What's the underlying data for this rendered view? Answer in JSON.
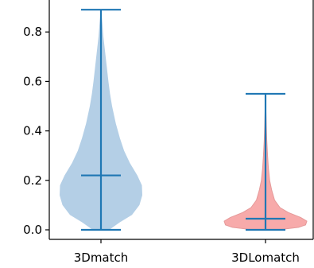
{
  "chart_data": {
    "type": "violin",
    "categories": [
      "3Dmatch",
      "3DLomatch"
    ],
    "yticks": [
      "0.0",
      "0.2",
      "0.4",
      "0.6",
      "0.8"
    ],
    "ylim": [
      -0.04,
      0.93
    ],
    "grid": false,
    "series": [
      {
        "category": "3Dmatch",
        "min": 0.0,
        "max": 0.89,
        "median": 0.22,
        "fill_color": "#b4cfe6",
        "line_color": "#1f77b4",
        "density_profile": [
          [
            0.0,
            0.2
          ],
          [
            0.03,
            0.45
          ],
          [
            0.06,
            0.75
          ],
          [
            0.1,
            0.93
          ],
          [
            0.14,
            1.0
          ],
          [
            0.18,
            0.99
          ],
          [
            0.22,
            0.88
          ],
          [
            0.27,
            0.7
          ],
          [
            0.32,
            0.56
          ],
          [
            0.37,
            0.46
          ],
          [
            0.43,
            0.36
          ],
          [
            0.5,
            0.27
          ],
          [
            0.55,
            0.22
          ],
          [
            0.6,
            0.18
          ],
          [
            0.66,
            0.14
          ],
          [
            0.72,
            0.1
          ],
          [
            0.78,
            0.06
          ],
          [
            0.84,
            0.03
          ],
          [
            0.89,
            0.0
          ]
        ]
      },
      {
        "category": "3DLomatch",
        "min": 0.0,
        "max": 0.55,
        "median": 0.045,
        "fill_color": "#f7aaaa",
        "line_color": "#1f77b4",
        "density_profile": [
          [
            0.0,
            0.3
          ],
          [
            0.01,
            0.8
          ],
          [
            0.02,
            0.97
          ],
          [
            0.035,
            1.0
          ],
          [
            0.05,
            0.85
          ],
          [
            0.07,
            0.55
          ],
          [
            0.09,
            0.35
          ],
          [
            0.12,
            0.22
          ],
          [
            0.16,
            0.15
          ],
          [
            0.2,
            0.1
          ],
          [
            0.25,
            0.07
          ],
          [
            0.3,
            0.05
          ],
          [
            0.36,
            0.03
          ],
          [
            0.42,
            0.02
          ],
          [
            0.48,
            0.01
          ],
          [
            0.55,
            0.0
          ]
        ]
      }
    ]
  }
}
